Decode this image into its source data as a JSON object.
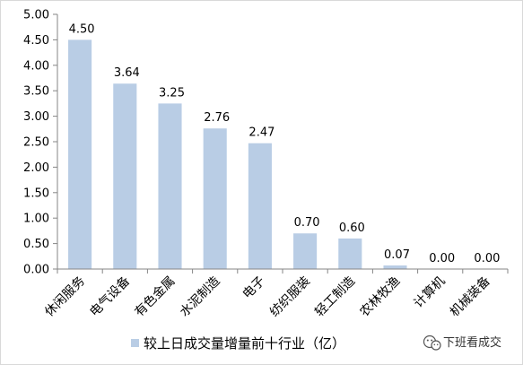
{
  "chart_data": {
    "type": "bar",
    "categories": [
      "休闲服务",
      "电气设备",
      "有色金属",
      "水泥制造",
      "电子",
      "纺织服装",
      "轻工制造",
      "农林牧渔",
      "计算机",
      "机械装备"
    ],
    "series": [
      {
        "name": "较上日成交量增量前十行业（亿）",
        "values": [
          4.5,
          3.64,
          3.25,
          2.76,
          2.47,
          0.7,
          0.6,
          0.07,
          0.0,
          0.0
        ],
        "color": "#b9cde5"
      }
    ],
    "value_labels": [
      "4.50",
      "3.64",
      "3.25",
      "2.76",
      "2.47",
      "0.70",
      "0.60",
      "0.07",
      "0.00",
      "0.00"
    ],
    "y_ticks": [
      "0.00",
      "0.50",
      "1.00",
      "1.50",
      "2.00",
      "2.50",
      "3.00",
      "3.50",
      "4.00",
      "4.50",
      "5.00"
    ],
    "ylim": [
      0,
      5
    ],
    "grid": false,
    "legend_position": "bottom"
  },
  "watermark": {
    "text": "下班看成交",
    "icon": "wechat-icon"
  }
}
